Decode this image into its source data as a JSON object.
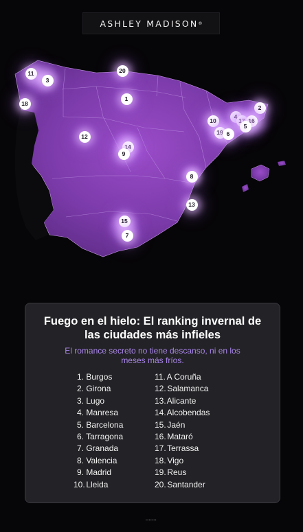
{
  "brand": {
    "name": "ASHLEY MADISON",
    "mark": "®"
  },
  "map": {
    "markers": [
      {
        "label": "11"
      },
      {
        "label": "3"
      },
      {
        "label": "20"
      },
      {
        "label": "18"
      },
      {
        "label": "1"
      },
      {
        "label": "2"
      },
      {
        "label": "4"
      },
      {
        "label": "17"
      },
      {
        "label": "16"
      },
      {
        "label": "5"
      },
      {
        "label": "10"
      },
      {
        "label": "19"
      },
      {
        "label": "6"
      },
      {
        "label": "12"
      },
      {
        "label": "14"
      },
      {
        "label": "9"
      },
      {
        "label": "8"
      },
      {
        "label": "13"
      },
      {
        "label": "15"
      },
      {
        "label": "7"
      }
    ],
    "colors": {
      "land": "#7a3aa8",
      "glow": "#c77dff",
      "sea": "#060507"
    }
  },
  "card": {
    "title": "Fuego en el hielo: El ranking invernal de las ciudades más infieles",
    "subtitle": "El romance secreto no tiene descanso, ni en los meses más fríos.",
    "ranking": [
      {
        "rank": "1.",
        "city": "Burgos"
      },
      {
        "rank": "2.",
        "city": "Girona"
      },
      {
        "rank": "3.",
        "city": "Lugo"
      },
      {
        "rank": "4.",
        "city": "Manresa"
      },
      {
        "rank": "5.",
        "city": "Barcelona"
      },
      {
        "rank": "6.",
        "city": "Tarragona"
      },
      {
        "rank": "7.",
        "city": "Granada"
      },
      {
        "rank": "8.",
        "city": "Valencia"
      },
      {
        "rank": "9.",
        "city": "Madrid"
      },
      {
        "rank": "10.",
        "city": "Lleida"
      },
      {
        "rank": "11.",
        "city": "A Coruña"
      },
      {
        "rank": "12.",
        "city": "Salamanca"
      },
      {
        "rank": "13.",
        "city": "Alicante"
      },
      {
        "rank": "14.",
        "city": "Alcobendas"
      },
      {
        "rank": "15.",
        "city": "Jaén"
      },
      {
        "rank": "16.",
        "city": "Mataró"
      },
      {
        "rank": "17.",
        "city": "Terrassa"
      },
      {
        "rank": "18.",
        "city": "Vigo"
      },
      {
        "rank": "19.",
        "city": "Reus"
      },
      {
        "rank": "20.",
        "city": "Santander"
      }
    ]
  }
}
